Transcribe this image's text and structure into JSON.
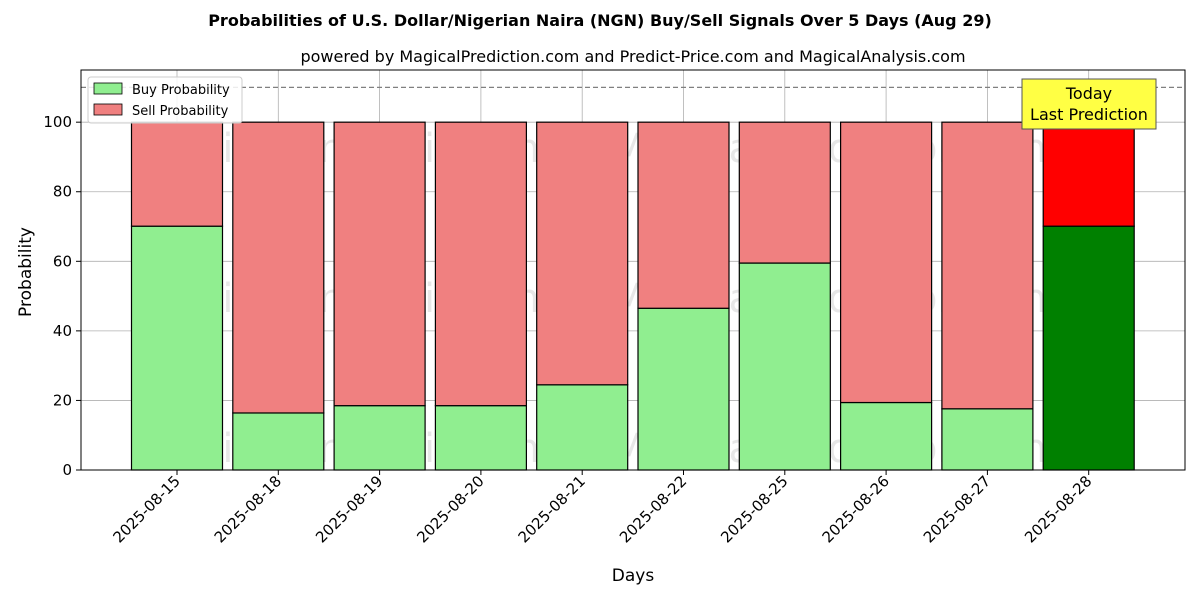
{
  "chart_data": {
    "type": "bar",
    "stacked": true,
    "title": "Probabilities of U.S. Dollar/Nigerian Naira (NGN) Buy/Sell Signals Over 5 Days (Aug 29)",
    "subtitle": "powered by MagicalPrediction.com and Predict-Price.com and MagicalAnalysis.com",
    "xlabel": "Days",
    "ylabel": "Probability",
    "ylim": [
      0,
      115
    ],
    "yticks": [
      0,
      20,
      40,
      60,
      80,
      100
    ],
    "reference_line": 110,
    "categories": [
      "2025-08-15",
      "2025-08-18",
      "2025-08-19",
      "2025-08-20",
      "2025-08-21",
      "2025-08-22",
      "2025-08-25",
      "2025-08-26",
      "2025-08-27",
      "2025-08-28"
    ],
    "series": [
      {
        "name": "Buy Probability",
        "values": [
          70.1,
          16.4,
          18.5,
          18.5,
          24.5,
          46.5,
          59.5,
          19.4,
          17.6,
          70.1
        ]
      },
      {
        "name": "Sell Probability",
        "values": [
          29.9,
          83.6,
          81.5,
          81.5,
          75.5,
          53.5,
          40.5,
          80.6,
          82.4,
          29.9
        ]
      }
    ],
    "grid": true,
    "legend": "top-left",
    "colors": {
      "buy": "#90ee90",
      "sell": "#f08080",
      "buy_highlight": "#008000",
      "sell_highlight": "#ff0000",
      "annotation_bg": "#ffff44"
    },
    "highlight_index": 9,
    "annotation": {
      "line1": "Today",
      "line2": "Last Prediction"
    },
    "watermarks": [
      "MagicalAnalysis.com",
      "MagicalPrediction.com"
    ]
  }
}
